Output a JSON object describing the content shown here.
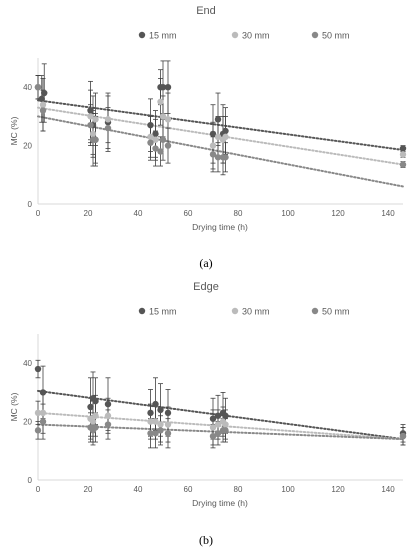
{
  "chart_data": [
    {
      "type": "scatter",
      "title": "End",
      "caption": "(a)",
      "xlabel": "Drying time (h)",
      "ylabel": "MC (%)",
      "xlim": [
        0,
        146
      ],
      "ylim": [
        0,
        50
      ],
      "xticks": [
        "0",
        "20",
        "40",
        "60",
        "80",
        "100",
        "120",
        "140"
      ],
      "yticks": [
        "0",
        "20",
        "40"
      ],
      "grid": false,
      "legend_position": "top",
      "series": [
        {
          "name": "15 mm",
          "color": "#555555",
          "points": [
            [
              0,
              40,
              4
            ],
            [
              1.5,
              36,
              8
            ],
            [
              2.5,
              38,
              10
            ],
            [
              21,
              32,
              10
            ],
            [
              22,
              27,
              10
            ],
            [
              23,
              22,
              9
            ],
            [
              28,
              28,
              10
            ],
            [
              45,
              27,
              9
            ],
            [
              47,
              24,
              8
            ],
            [
              49,
              40,
              6
            ],
            [
              50,
              40,
              9
            ],
            [
              52,
              40,
              9
            ],
            [
              70,
              24,
              10
            ],
            [
              72,
              29,
              9
            ],
            [
              74,
              24,
              10
            ],
            [
              75,
              25,
              8
            ],
            [
              146,
              19,
              1
            ]
          ],
          "trend": [
            [
              0,
              35.5
            ],
            [
              146,
              18.5
            ]
          ]
        },
        {
          "name": "30 mm",
          "color": "#bbbbbb",
          "points": [
            [
              0,
              40,
              4
            ],
            [
              2,
              34,
              9
            ],
            [
              21,
              30,
              9
            ],
            [
              22,
              24,
              8
            ],
            [
              23,
              29,
              9
            ],
            [
              28,
              29,
              8
            ],
            [
              45,
              23,
              7
            ],
            [
              47,
              22,
              7
            ],
            [
              49,
              35,
              8
            ],
            [
              50,
              30,
              7
            ],
            [
              52,
              29,
              9
            ],
            [
              70,
              20,
              8
            ],
            [
              72,
              23,
              7
            ],
            [
              74,
              22,
              8
            ],
            [
              75,
              23,
              7
            ],
            [
              146,
              17,
              1
            ]
          ],
          "trend": [
            [
              0,
              33
            ],
            [
              146,
              13.5
            ]
          ]
        },
        {
          "name": "50 mm",
          "color": "#888888",
          "points": [
            [
              0,
              40,
              4
            ],
            [
              2,
              32,
              7
            ],
            [
              21,
              27,
              7
            ],
            [
              22,
              22,
              9
            ],
            [
              23,
              22,
              8
            ],
            [
              28,
              26,
              7
            ],
            [
              45,
              21,
              6
            ],
            [
              47,
              19,
              6
            ],
            [
              49,
              18,
              5
            ],
            [
              50,
              22,
              7
            ],
            [
              52,
              20,
              6
            ],
            [
              70,
              17,
              6
            ],
            [
              72,
              16,
              5
            ],
            [
              74,
              16,
              6
            ],
            [
              75,
              16,
              5
            ],
            [
              146,
              13.5,
              1
            ]
          ],
          "trend": [
            [
              0,
              30
            ],
            [
              146,
              6
            ]
          ]
        }
      ]
    },
    {
      "type": "scatter",
      "title": "Edge",
      "caption": "(b)",
      "xlabel": "Drying time (h)",
      "ylabel": "MC (%)",
      "xlim": [
        0,
        146
      ],
      "ylim": [
        0,
        50
      ],
      "xticks": [
        "0",
        "20",
        "40",
        "60",
        "80",
        "100",
        "120",
        "140"
      ],
      "yticks": [
        "0",
        "20",
        "40"
      ],
      "grid": false,
      "legend_position": "top",
      "series": [
        {
          "name": "15 mm",
          "color": "#555555",
          "points": [
            [
              0,
              38,
              3
            ],
            [
              2,
              30,
              9
            ],
            [
              21,
              25,
              10
            ],
            [
              22,
              28,
              9
            ],
            [
              23,
              27,
              8
            ],
            [
              28,
              26,
              9
            ],
            [
              45,
              23,
              8
            ],
            [
              47,
              26,
              9
            ],
            [
              49,
              24,
              9
            ],
            [
              52,
              23,
              8
            ],
            [
              70,
              21,
              7
            ],
            [
              72,
              22,
              7
            ],
            [
              74,
              23,
              7
            ],
            [
              75,
              22,
              6
            ],
            [
              146,
              16,
              3
            ]
          ],
          "trend": [
            [
              0,
              30.5
            ],
            [
              146,
              14
            ]
          ]
        },
        {
          "name": "30 mm",
          "color": "#bbbbbb",
          "points": [
            [
              0,
              23,
              4
            ],
            [
              2,
              23,
              7
            ],
            [
              21,
              21,
              7
            ],
            [
              22,
              20,
              7
            ],
            [
              23,
              22,
              7
            ],
            [
              28,
              22,
              6
            ],
            [
              45,
              20,
              6
            ],
            [
              47,
              20,
              6
            ],
            [
              49,
              19,
              6
            ],
            [
              52,
              19,
              6
            ],
            [
              70,
              18,
              6
            ],
            [
              72,
              19,
              5
            ],
            [
              74,
              20,
              5
            ],
            [
              75,
              19,
              5
            ],
            [
              146,
              15,
              3
            ]
          ],
          "trend": [
            [
              0,
              23
            ],
            [
              146,
              14
            ]
          ]
        },
        {
          "name": "50 mm",
          "color": "#888888",
          "points": [
            [
              0,
              17,
              3
            ],
            [
              2,
              20,
              6
            ],
            [
              21,
              18,
              5
            ],
            [
              22,
              17,
              5
            ],
            [
              23,
              18,
              5
            ],
            [
              28,
              19,
              5
            ],
            [
              45,
              16,
              5
            ],
            [
              47,
              16,
              5
            ],
            [
              49,
              17,
              5
            ],
            [
              52,
              16,
              5
            ],
            [
              70,
              15,
              4
            ],
            [
              72,
              16,
              4
            ],
            [
              74,
              17,
              4
            ],
            [
              75,
              17,
              4
            ],
            [
              146,
              15,
              3
            ]
          ],
          "trend": [
            [
              0,
              19
            ],
            [
              146,
              14
            ]
          ]
        }
      ]
    }
  ]
}
